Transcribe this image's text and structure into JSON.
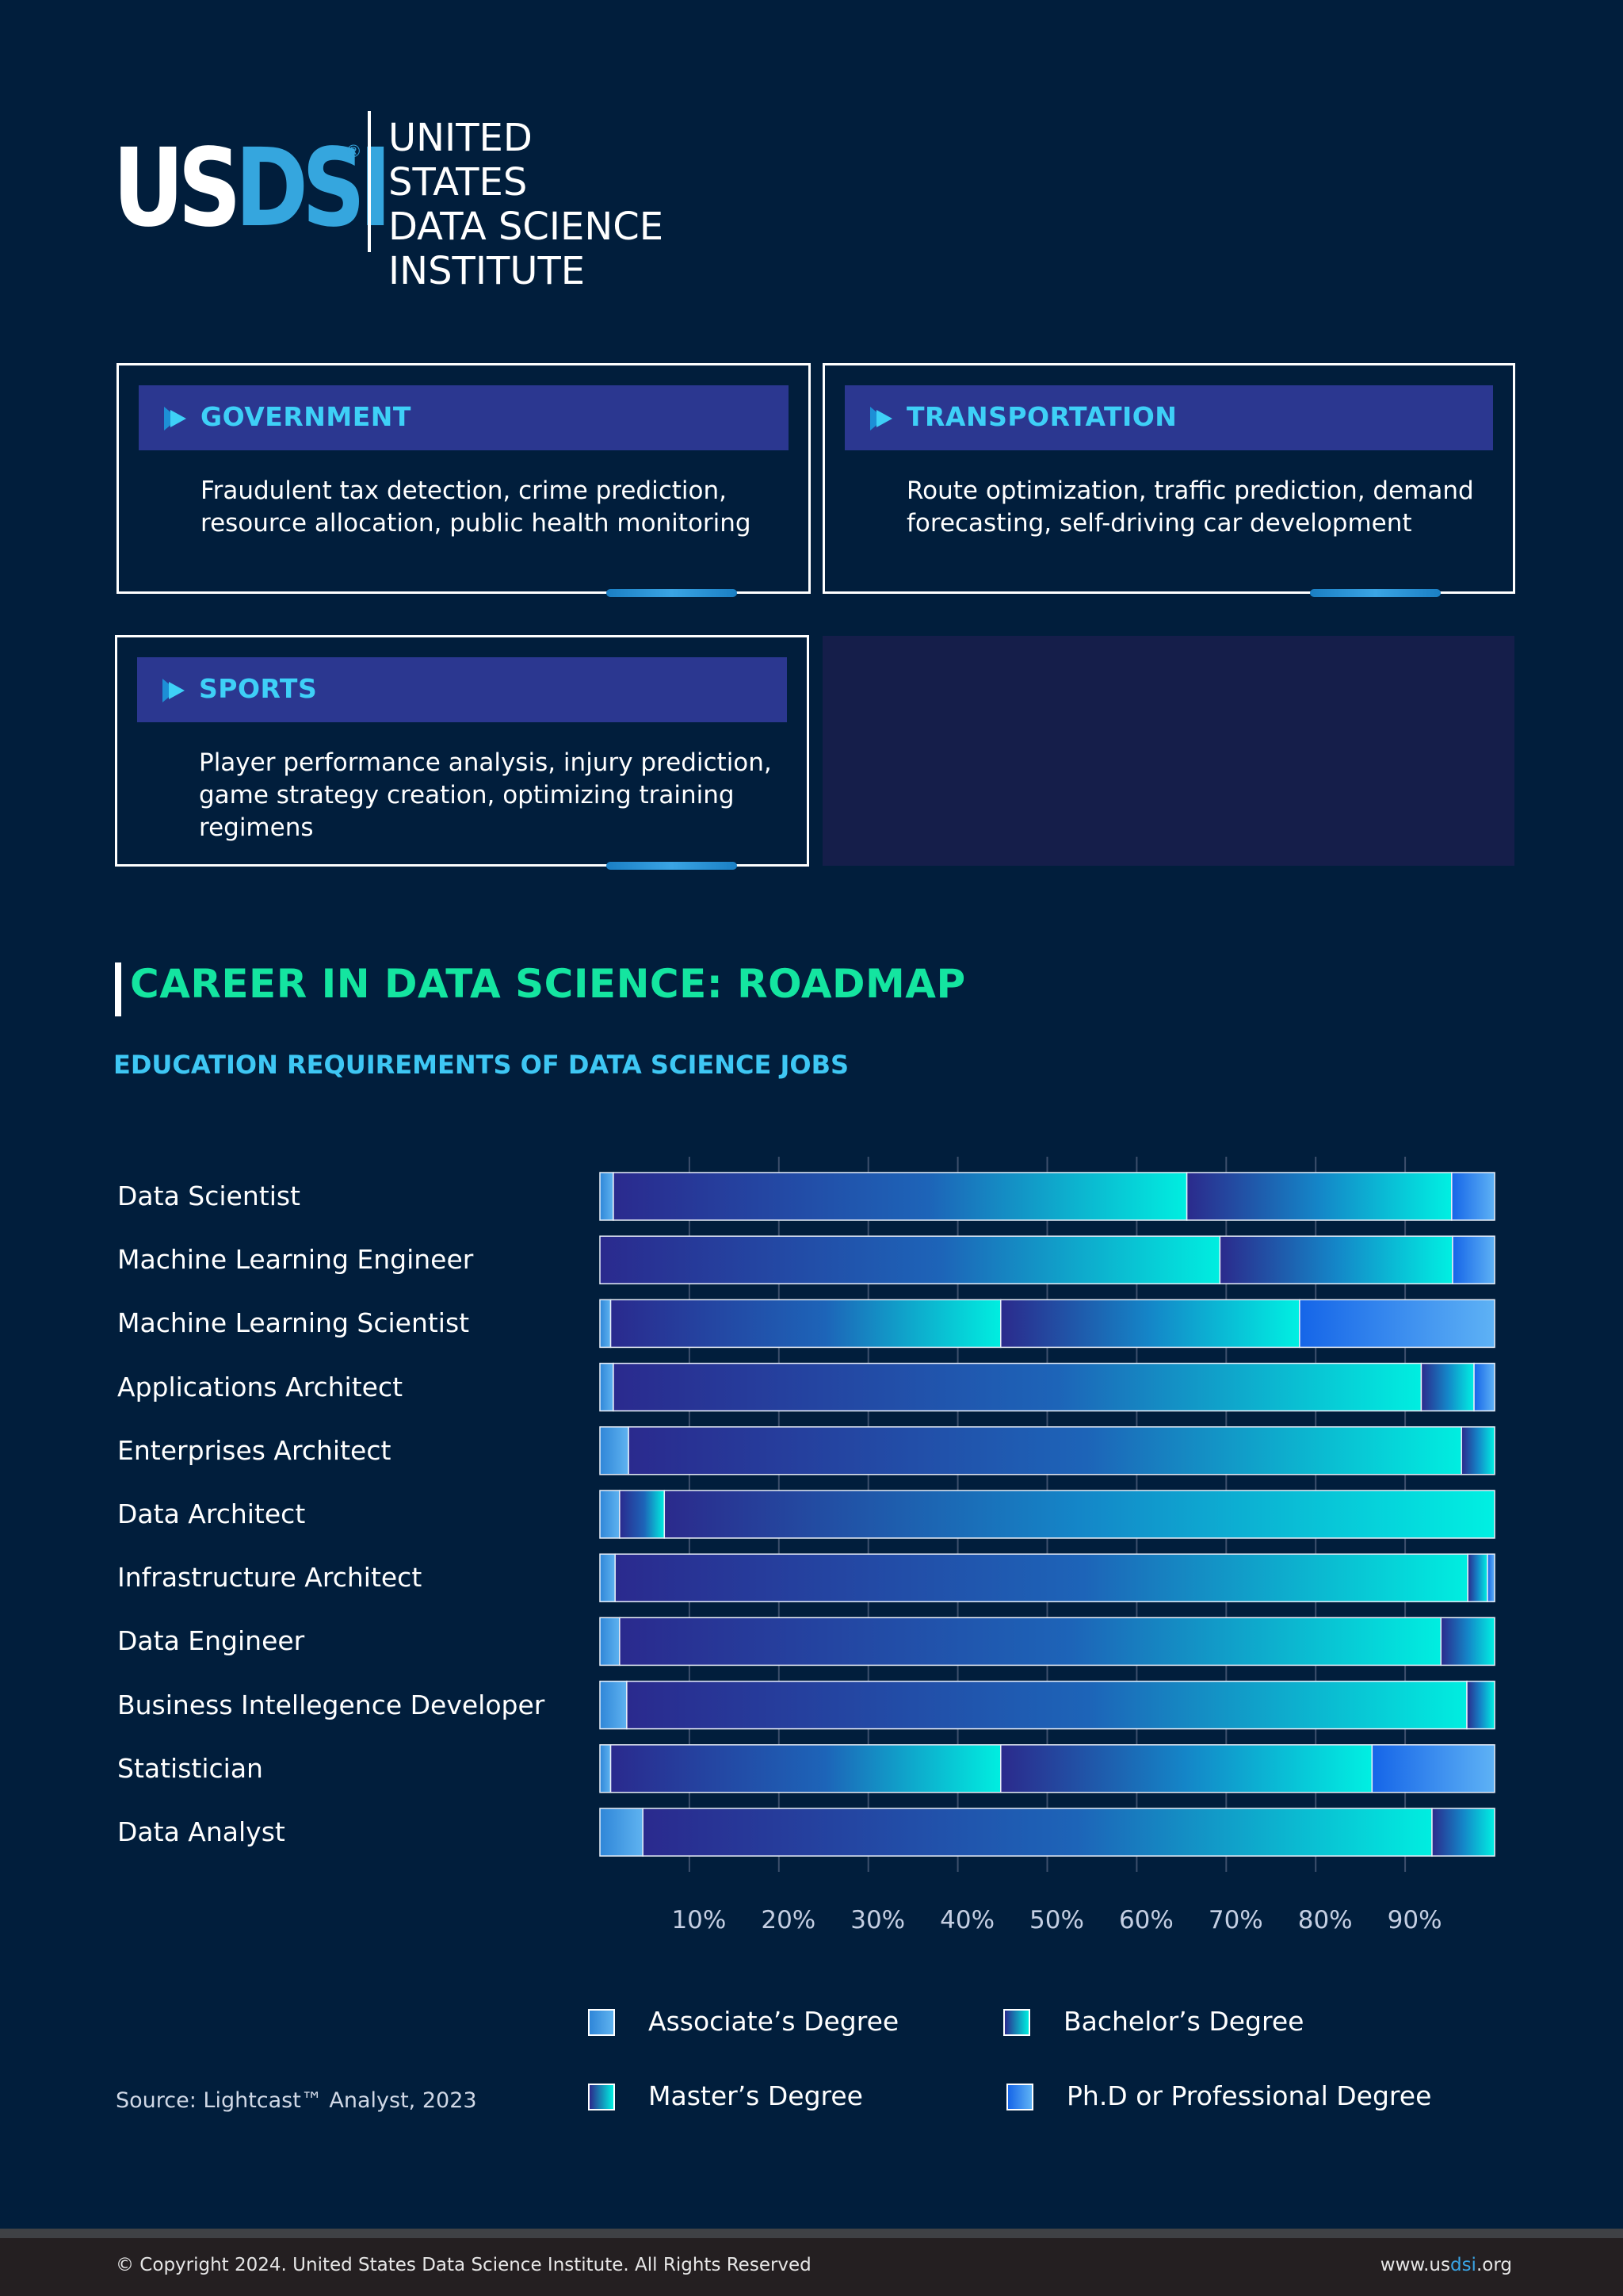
{
  "logo": {
    "mark_us": "US",
    "mark_dsi": "DSI",
    "registered": "®",
    "name_lines": [
      "UNITED STATES",
      "DATA SCIENCE",
      "INSTITUTE"
    ]
  },
  "cards": [
    {
      "title": "GOVERNMENT",
      "body": "Fraudulent tax detection, crime prediction, resource allocation, public health monitoring"
    },
    {
      "title": "TRANSPORTATION",
      "body": "Route optimization, traffic prediction, demand forecasting, self-driving car development"
    },
    {
      "title": "SPORTS",
      "body": "Player performance analysis, injury prediction, game strategy creation, optimizing training regimens"
    }
  ],
  "section": {
    "title": "CAREER IN DATA SCIENCE: ROADMAP",
    "subtitle": "EDUCATION REQUIREMENTS OF DATA SCIENCE JOBS"
  },
  "chart_data": {
    "type": "bar",
    "orientation": "horizontal",
    "stacked": true,
    "categories": [
      "Data Scientist",
      "Machine Learning Engineer",
      "Machine Learning Scientist",
      "Applications Architect",
      "Enterprises Architect",
      "Data Architect",
      "Infrastructure Architect",
      "Data Engineer",
      "Business Intellegence Developer",
      "Statistician",
      "Data Analyst"
    ],
    "series": [
      {
        "name": "Associate’s Degree",
        "values": [
          1.5,
          0,
          1.2,
          1.5,
          3.2,
          2.2,
          1.7,
          2.2,
          3.0,
          1.2,
          4.8
        ]
      },
      {
        "name": "Bachelor’s Degree",
        "values": [
          64.1,
          69.3,
          43.6,
          90.3,
          93.1,
          5.0,
          95.3,
          91.8,
          93.9,
          43.6,
          88.2
        ]
      },
      {
        "name": "Master’s Degree",
        "values": [
          29.6,
          26.0,
          33.4,
          5.9,
          3.7,
          92.8,
          2.2,
          6.0,
          3.1,
          41.5,
          7.0
        ]
      },
      {
        "name": "Ph.D or Professional Degree",
        "values": [
          4.8,
          4.7,
          21.8,
          2.3,
          0,
          0,
          0.8,
          0,
          0,
          13.7,
          0
        ]
      }
    ],
    "x_ticks": [
      "10%",
      "20%",
      "30%",
      "40%",
      "50%",
      "60%",
      "70%",
      "80%",
      "90%"
    ],
    "xlim": [
      0,
      100
    ],
    "grid": true,
    "legend_position": "bottom"
  },
  "source": "Source: Lightcast™ Analyst, 2023",
  "footer": {
    "copyright": "© Copyright 2024. United States Data Science Institute. All Rights Reserved",
    "url_prefix": "www.us",
    "url_highlight": "dsi",
    "url_suffix": ".org"
  },
  "colors": {
    "background": "#011e3c",
    "card_header": "#2b3790",
    "card_title": "#3ed0f7",
    "section_title": "#14e5a0",
    "section_subtitle": "#3ec7f4",
    "bachelor_start": "#2a2a8e",
    "bachelor_end": "#00eee0",
    "phd_start": "#1565e8",
    "phd_end": "#5eb2f5"
  },
  "icons": {
    "card_header": "chevron-right-icon"
  }
}
